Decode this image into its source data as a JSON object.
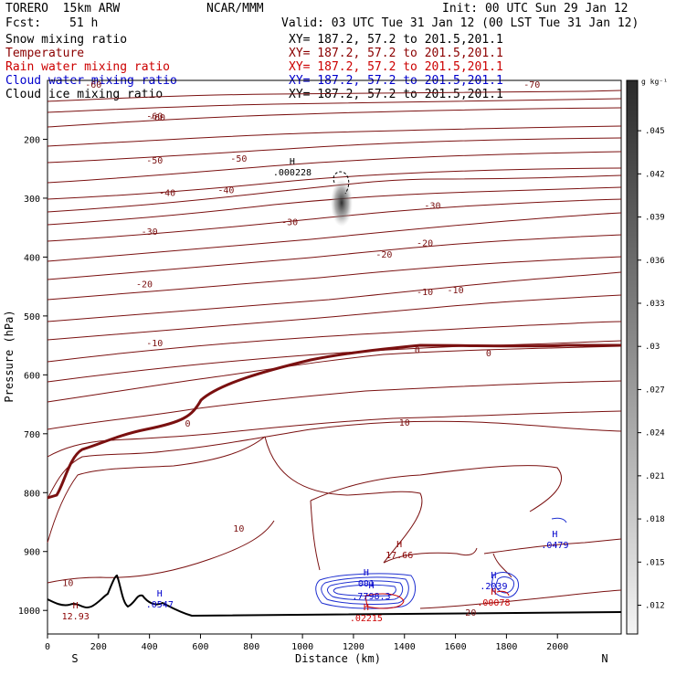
{
  "header": {
    "model": "TORERO  15km ARW",
    "center": "NCAR/MMM",
    "init": "Init: 00 UTC Sun 29 Jan 12",
    "fcst_label": "Fcst:",
    "fcst_value": "51 h",
    "valid": "Valid: 03 UTC Tue 31 Jan 12 (00 LST Tue 31 Jan 12)"
  },
  "fields": [
    {
      "label": "Snow mixing ratio",
      "xy": "XY= 187.2, 57.2 to 201.5,201.1",
      "color": "#000000"
    },
    {
      "label": "Temperature",
      "xy": "XY= 187.2, 57.2 to 201.5,201.1",
      "color": "#8b0000"
    },
    {
      "label": "Rain water mixing ratio",
      "xy": "XY= 187.2, 57.2 to 201.5,201.1",
      "color": "#cc0000"
    },
    {
      "label": "Cloud water mixing ratio",
      "xy": "XY= 187.2, 57.2 to 201.5,201.1",
      "color": "#0000cc"
    },
    {
      "label": "Cloud ice mixing ratio",
      "xy": "XY= 187.2, 57.2 to 201.5,201.1",
      "color": "#000000"
    }
  ],
  "chart_data": {
    "type": "contour",
    "xlabel": "Distance (km)",
    "ylabel": "Pressure (hPa)",
    "xlim": [
      0,
      2250
    ],
    "ylim": [
      1040,
      100
    ],
    "x_ticks": [
      0,
      200,
      400,
      600,
      800,
      1000,
      1200,
      1400,
      1600,
      1800,
      2000
    ],
    "y_ticks": [
      200,
      300,
      400,
      500,
      600,
      700,
      800,
      900,
      1000
    ],
    "endpoint_left": "S",
    "endpoint_right": "N",
    "colorbar": {
      "unit": "g kg⁻¹",
      "ticks": [
        ".012",
        ".015",
        ".018",
        ".021",
        ".024",
        ".027",
        ".03",
        ".033",
        ".036",
        ".039",
        ".042",
        ".045"
      ],
      "range": [
        0.01,
        0.0485
      ]
    },
    "temperature_contour_labels": [
      {
        "x": 180,
        "p": 106,
        "text": "-60"
      },
      {
        "x": 1900,
        "p": 106,
        "text": "-70"
      },
      {
        "x": 420,
        "p": 160,
        "text": "-60"
      },
      {
        "x": 430,
        "p": 162,
        "text": "-60"
      },
      {
        "x": 420,
        "p": 235,
        "text": "-50"
      },
      {
        "x": 750,
        "p": 232,
        "text": "-50"
      },
      {
        "x": 470,
        "p": 290,
        "text": "-40"
      },
      {
        "x": 700,
        "p": 285,
        "text": "-40"
      },
      {
        "x": 400,
        "p": 356,
        "text": "-30"
      },
      {
        "x": 950,
        "p": 340,
        "text": "-30"
      },
      {
        "x": 1510,
        "p": 312,
        "text": "-30"
      },
      {
        "x": 380,
        "p": 445,
        "text": "-20"
      },
      {
        "x": 1320,
        "p": 395,
        "text": "-20"
      },
      {
        "x": 1480,
        "p": 375,
        "text": "-20"
      },
      {
        "x": 420,
        "p": 545,
        "text": "-10"
      },
      {
        "x": 1480,
        "p": 458,
        "text": "-10"
      },
      {
        "x": 1600,
        "p": 455,
        "text": "-10"
      },
      {
        "x": 1450,
        "p": 557,
        "text": "0"
      },
      {
        "x": 1730,
        "p": 562,
        "text": "0"
      },
      {
        "x": 550,
        "p": 682,
        "text": "0"
      },
      {
        "x": 1400,
        "p": 680,
        "text": "10"
      },
      {
        "x": 750,
        "p": 860,
        "text": "10"
      },
      {
        "x": 80,
        "p": 952,
        "text": "10"
      },
      {
        "x": 1660,
        "p": 1003,
        "text": "20"
      }
    ],
    "maxima": [
      {
        "field": "Cloud ice mixing ratio",
        "x": 960,
        "p": 255,
        "value": ".000228",
        "color": "#000000"
      },
      {
        "field": "Temperature",
        "x": 1380,
        "p": 905,
        "value": "17.66",
        "color": "#8b0000"
      },
      {
        "field": "Temperature",
        "x": 110,
        "p": 1009,
        "value": "12.93",
        "color": "#8b0000"
      },
      {
        "field": "Cloud water mixing ratio",
        "x": 440,
        "p": 989,
        "value": ".0547",
        "color": "#0000cc"
      },
      {
        "field": "Cloud water mixing ratio",
        "x": 1750,
        "p": 958,
        "value": ".2039",
        "color": "#0000cc"
      },
      {
        "field": "Cloud water mixing ratio",
        "x": 1990,
        "p": 888,
        "value": ".0479",
        "color": "#0000cc"
      },
      {
        "field": "Rain water mixing ratio",
        "x": 1750,
        "p": 986,
        "value": ".00078",
        "color": "#cc0000"
      },
      {
        "field": "Rain water mixing ratio",
        "x": 1250,
        "p": 1012,
        "value": ".02215",
        "color": "#cc0000"
      },
      {
        "field": "Cloud water mixing ratio",
        "x": 1270,
        "p": 975,
        "value": ".7798.3",
        "color": "#0000cc"
      },
      {
        "field": "Cloud water mixing ratio",
        "x": 1250,
        "p": 953,
        "value": "001",
        "color": "#0000cc"
      }
    ]
  }
}
